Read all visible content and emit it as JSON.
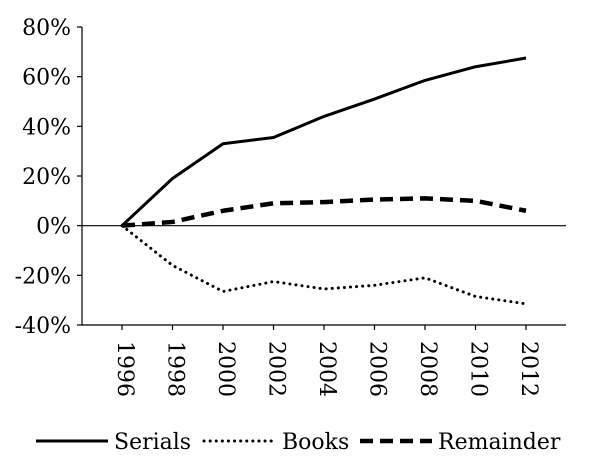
{
  "chart_data": {
    "type": "line",
    "title": "",
    "xlabel": "",
    "ylabel": "",
    "x": [
      1996,
      1998,
      2000,
      2002,
      2004,
      2006,
      2008,
      2010,
      2012
    ],
    "x_tick_labels": [
      "1996",
      "1998",
      "2000",
      "2002",
      "2004",
      "2006",
      "2008",
      "2010",
      "2012"
    ],
    "y_tick_labels": [
      "80%",
      "60%",
      "40%",
      "20%",
      "0%",
      "-20%",
      "-40%"
    ],
    "y_ticks": [
      80,
      60,
      40,
      20,
      0,
      -20,
      -40
    ],
    "xlim": [
      1996,
      2012
    ],
    "ylim": [
      -40,
      80
    ],
    "grid": {
      "horizontal": false,
      "vertical": false,
      "zero_line": true
    },
    "legend_position": "bottom",
    "series": [
      {
        "name": "Serials",
        "line_style": "solid",
        "color": "#000000",
        "values": [
          0,
          19,
          33,
          35.5,
          44,
          51,
          58.5,
          64,
          67.5
        ]
      },
      {
        "name": "Books",
        "line_style": "dotted",
        "color": "#000000",
        "values": [
          0,
          -16,
          -26.5,
          -22.5,
          -25.5,
          -24,
          -21,
          -28.5,
          -31.5
        ]
      },
      {
        "name": "Remainder",
        "line_style": "dashed",
        "color": "#000000",
        "values": [
          0,
          1.5,
          6,
          9,
          9.5,
          10.5,
          11,
          10,
          6
        ]
      }
    ]
  }
}
